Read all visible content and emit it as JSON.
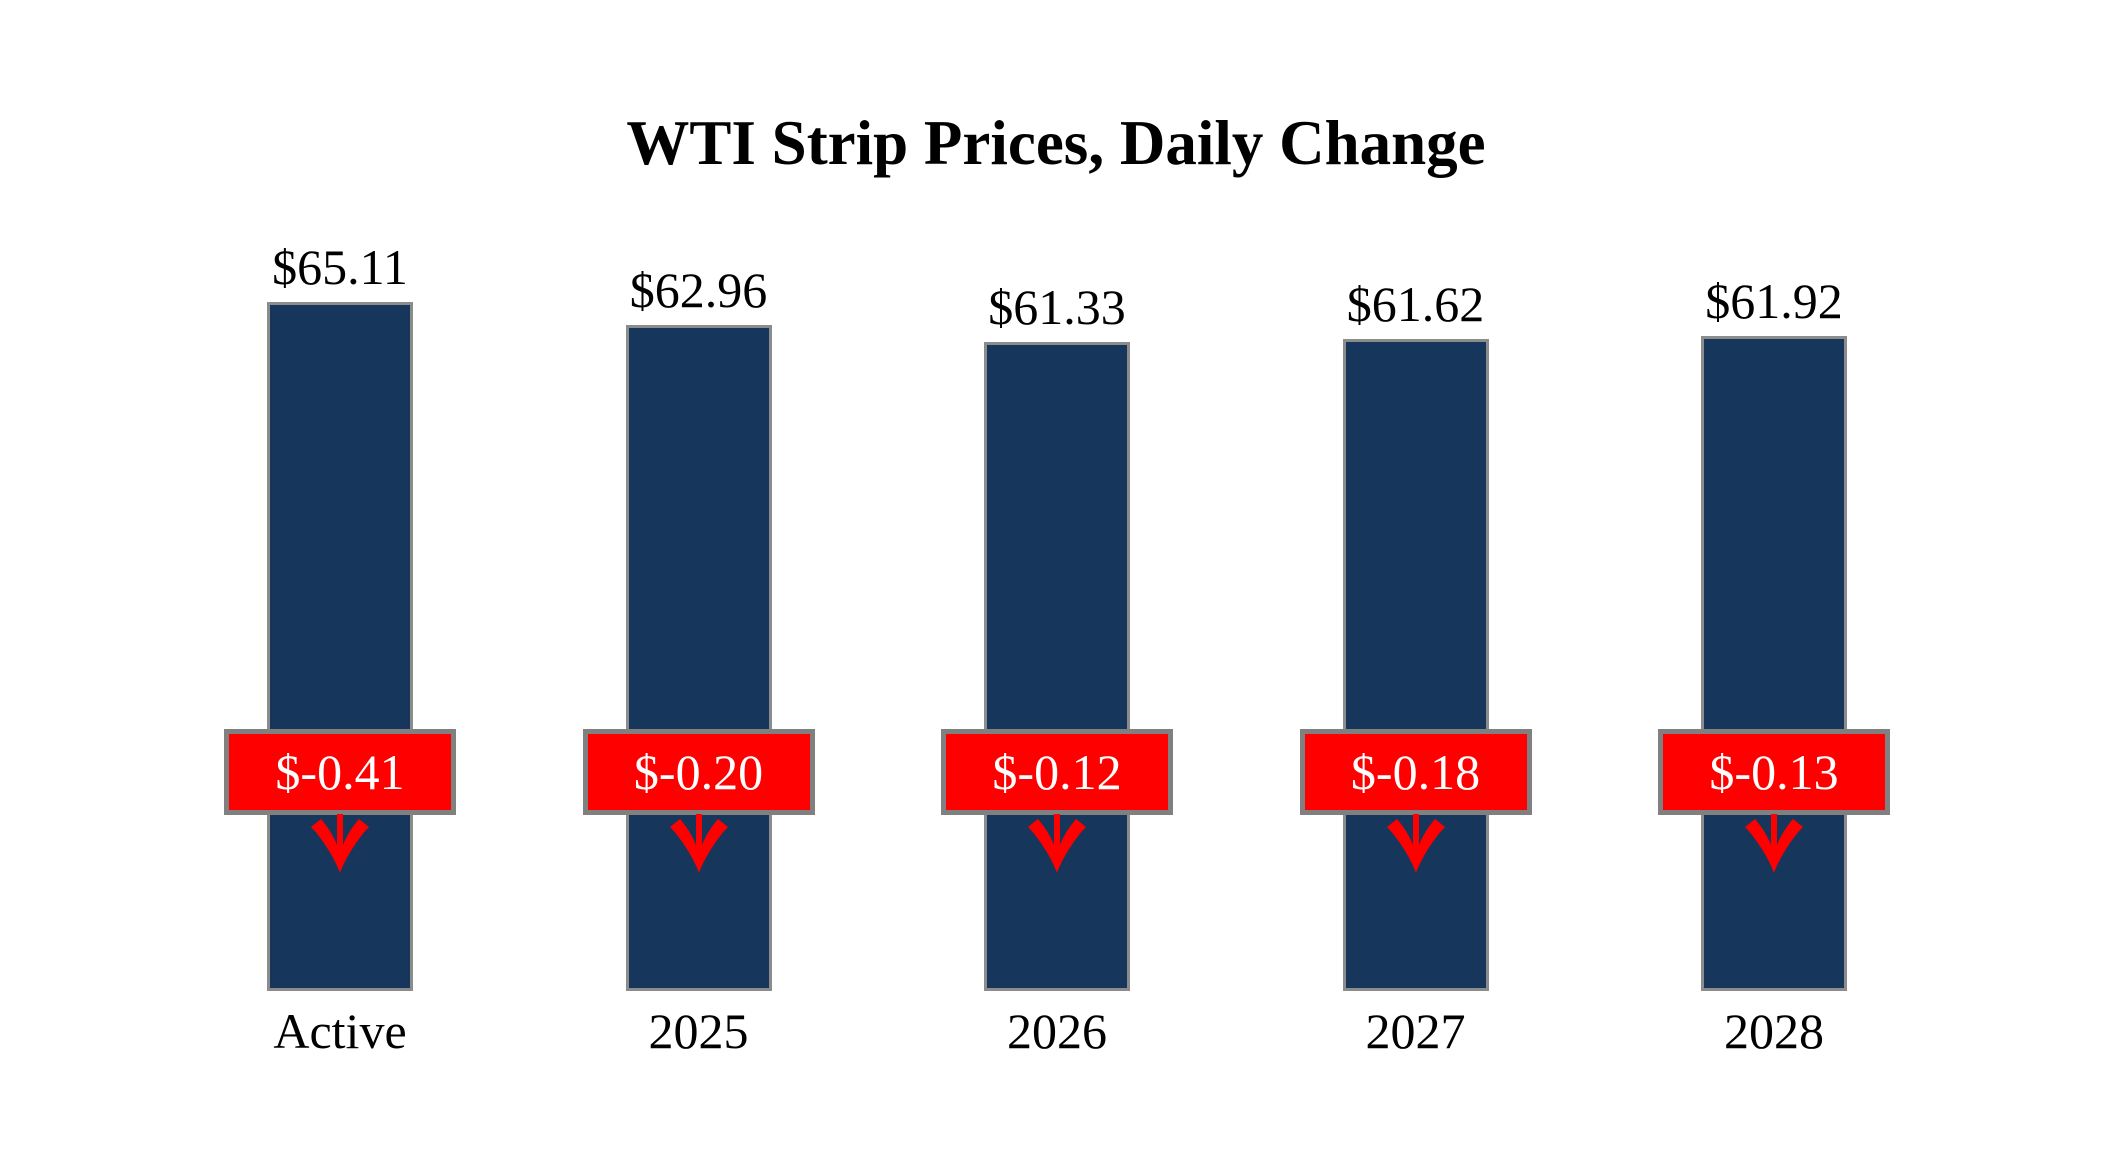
{
  "chart_data": {
    "type": "bar",
    "title": "WTI Strip Prices, Daily Change",
    "categories": [
      "Active",
      "2025",
      "2026",
      "2027",
      "2028"
    ],
    "series": [
      {
        "name": "WTI Strip Price",
        "values": [
          65.11,
          62.96,
          61.33,
          61.62,
          61.92
        ],
        "labels": [
          "$65.11",
          "$62.96",
          "$61.33",
          "$61.62",
          "$61.92"
        ]
      },
      {
        "name": "Daily Change",
        "values": [
          -0.41,
          -0.2,
          -0.12,
          -0.18,
          -0.13
        ],
        "labels": [
          "$-0.41",
          "$-0.20",
          "$-0.12",
          "$-0.18",
          "$-0.13"
        ]
      }
    ],
    "xlabel": "",
    "ylabel": "",
    "ylim": [
      0,
      65.11
    ],
    "grid": false,
    "legend_position": "none",
    "change_direction": "down",
    "colors": {
      "bar_fill": "#16365C",
      "bar_border": "#8C8C8C",
      "badge_fill": "#FF0000",
      "badge_border": "#808080",
      "badge_text": "#FFFFFF",
      "arrow": "#FF0000",
      "text": "#000000",
      "background": "#FFFFFF"
    }
  }
}
